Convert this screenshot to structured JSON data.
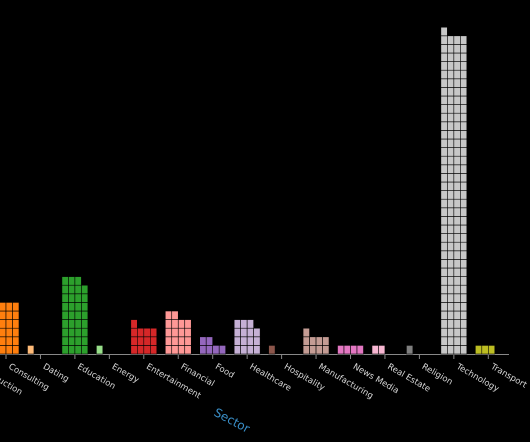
{
  "chart_data": {
    "type": "unit-bar",
    "x_label": "Sector",
    "categories": [
      "Construction",
      "Consulting",
      "Dating",
      "Education",
      "Energy",
      "Entertainment",
      "Financial",
      "Food",
      "Healthcare",
      "Hospitality",
      "Manufacturing",
      "News Media",
      "Real Estate",
      "Religion",
      "Technology",
      "Transport"
    ],
    "values": [
      null,
      24,
      1,
      35,
      1,
      13,
      18,
      6,
      15,
      1,
      9,
      4,
      2,
      1,
      149,
      3
    ],
    "colors": [
      "#aec7e8",
      "#ff7f0e",
      "#ffbb78",
      "#2ca02c",
      "#98df8a",
      "#d62728",
      "#ff9896",
      "#9467bd",
      "#c5b0d5",
      "#8c564b",
      "#c49c94",
      "#e377c2",
      "#f7b6d2",
      "#7f7f7f",
      "#c7c7c7",
      "#bcbd22"
    ]
  }
}
